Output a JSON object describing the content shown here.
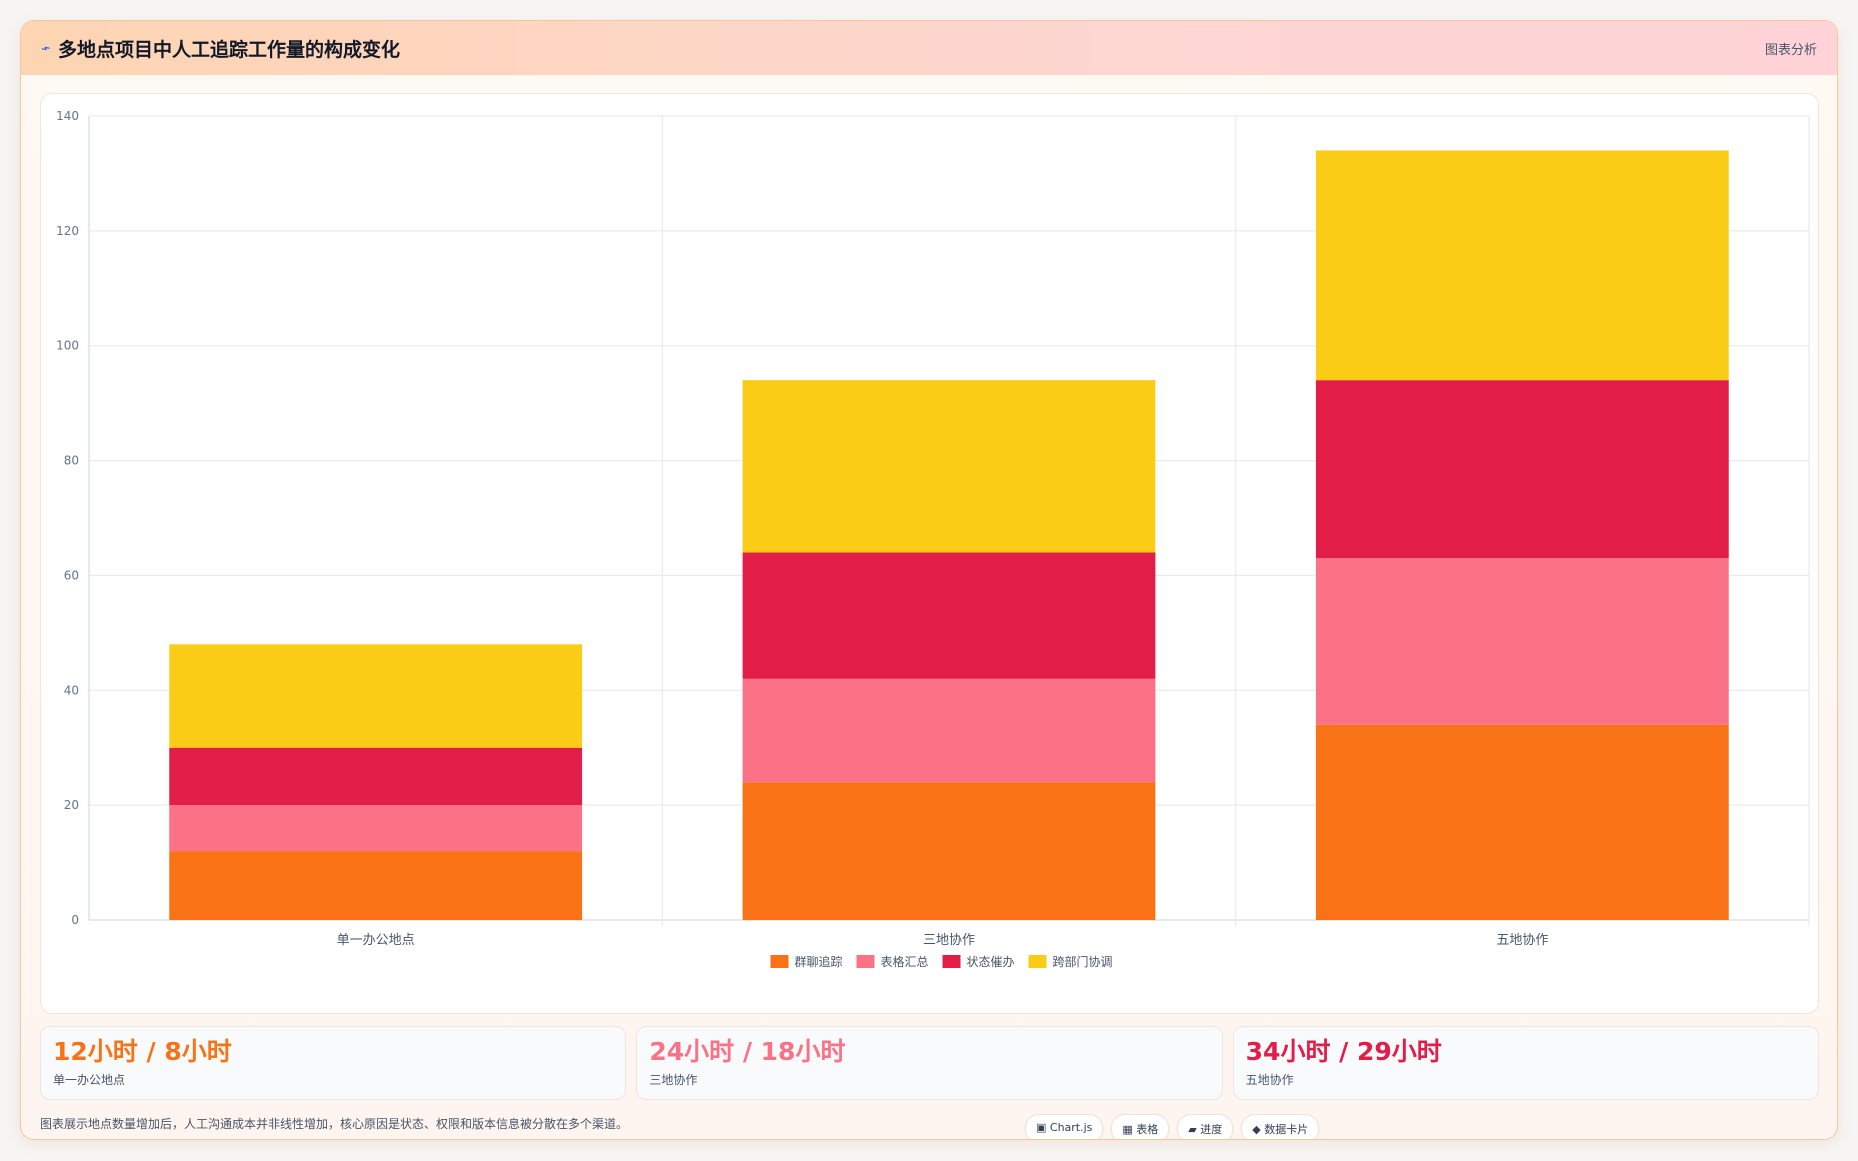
{
  "header": {
    "icon": "flash-icon",
    "title": "多地点项目中人工追踪工作量的构成变化",
    "tag": "图表分析"
  },
  "chart_data": {
    "type": "bar",
    "stacked": true,
    "categories": [
      "单一办公地点",
      "三地协作",
      "五地协作"
    ],
    "series": [
      {
        "name": "群聊追踪",
        "values": [
          12,
          24,
          34
        ],
        "color": "#f97316"
      },
      {
        "name": "表格汇总",
        "values": [
          8,
          18,
          29
        ],
        "color": "#fb7185"
      },
      {
        "name": "状态催办",
        "values": [
          10,
          22,
          31
        ],
        "color": "#e11d48"
      },
      {
        "name": "跨部门协调",
        "values": [
          18,
          30,
          40
        ],
        "color": "#facc15"
      }
    ],
    "ylim": [
      0,
      140
    ],
    "yticks": [
      0,
      20,
      40,
      60,
      80,
      100,
      120,
      140
    ],
    "grid": true,
    "legend": "bottom-center"
  },
  "stats": [
    {
      "value": "12小时 / 8小时",
      "label": "单一办公地点",
      "color": "#f97316"
    },
    {
      "value": "24小时 / 18小时",
      "label": "三地协作",
      "color": "#fb7185"
    },
    {
      "value": "34小时 / 29小时",
      "label": "五地协作",
      "color": "#e11d48"
    }
  ],
  "footer": {
    "note": "图表展示地点数量增加后，人工沟通成本并非线性增加，核心原因是状态、权限和版本信息被分散在多个渠道。",
    "chips": [
      "▣ Chart.js",
      "▦ 表格",
      "▰ 进度",
      "◆ 数据卡片"
    ]
  }
}
